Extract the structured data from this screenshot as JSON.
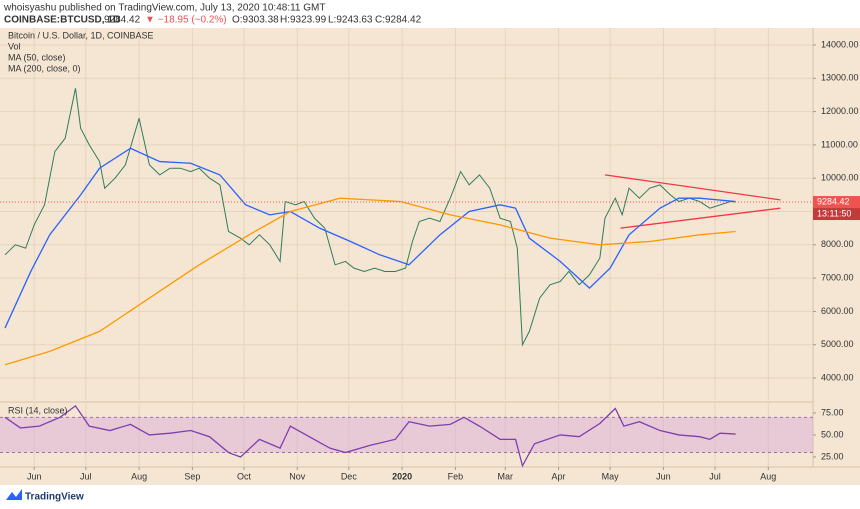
{
  "header": {
    "published": "whoisyashu published on TradingView.com, July 13, 2020 10:48:11 GMT",
    "symbol": "COINBASE:BTCUSD, 1D",
    "last": "9284.42",
    "change": "▼ −18.95 (−0.2%)",
    "open": "O:9303.38",
    "high": "H:9323.99",
    "low": "L:9243.63",
    "close": "C:9284.42"
  },
  "footer": {
    "brand": "TradingView"
  },
  "chart_data": [
    {
      "type": "line",
      "title": "Bitcoin / U.S. Dollar, 1D, COINBASE",
      "volume_label": "Vol",
      "xlim": [
        0,
        470
      ],
      "xticks": [
        {
          "value": 17,
          "label": "Jun"
        },
        {
          "value": 47,
          "label": "Jul"
        },
        {
          "value": 78,
          "label": "Aug"
        },
        {
          "value": 109,
          "label": "Sep"
        },
        {
          "value": 139,
          "label": "Oct"
        },
        {
          "value": 170,
          "label": "Nov"
        },
        {
          "value": 200,
          "label": "Dec"
        },
        {
          "value": 231,
          "label": "2020"
        },
        {
          "value": 262,
          "label": "Feb"
        },
        {
          "value": 291,
          "label": "Mar"
        },
        {
          "value": 322,
          "label": "Apr"
        },
        {
          "value": 352,
          "label": "May"
        },
        {
          "value": 383,
          "label": "Jun"
        },
        {
          "value": 413,
          "label": "Jul"
        },
        {
          "value": 444,
          "label": "Aug"
        }
      ],
      "ylim": [
        3340,
        14450
      ],
      "yticks": [
        {
          "value": 4000,
          "label": "4000.00"
        },
        {
          "value": 5000,
          "label": "5000.00"
        },
        {
          "value": 6000,
          "label": "6000.00"
        },
        {
          "value": 7000,
          "label": "7000.00"
        },
        {
          "value": 8000,
          "label": "8000.00"
        },
        {
          "value": 9000,
          "label": "9000.00"
        },
        {
          "value": 10000,
          "label": "10000.00"
        },
        {
          "value": 11000,
          "label": "11000.00"
        },
        {
          "value": 12000,
          "label": "12000.00"
        },
        {
          "value": 13000,
          "label": "13000.00"
        },
        {
          "value": 14000,
          "label": "14000.00"
        }
      ],
      "grid": true,
      "last_price": 9284.42,
      "countdown": "13:11:50",
      "last_price_color": "#ef5350",
      "series": [
        {
          "color": "#2e7d5b",
          "x": [
            0,
            6,
            12,
            17,
            23,
            29,
            35,
            41,
            44,
            49,
            55,
            58,
            64,
            70,
            78,
            84,
            90,
            96,
            102,
            108,
            113,
            119,
            125,
            130,
            137,
            142,
            148,
            154,
            160,
            163,
            169,
            174,
            180,
            186,
            192,
            198,
            203,
            209,
            215,
            221,
            227,
            233,
            237,
            241,
            247,
            253,
            259,
            265,
            270,
            276,
            282,
            288,
            294,
            298,
            301,
            305,
            311,
            317,
            323,
            328,
            334,
            340,
            346,
            349,
            355,
            359,
            363,
            369,
            375,
            381,
            387,
            392,
            398,
            404,
            410,
            416,
            422,
            425
          ],
          "values": [
            7700,
            8000,
            7900,
            8600,
            9200,
            10800,
            11200,
            12700,
            11500,
            11000,
            10500,
            9700,
            10000,
            10400,
            11800,
            10400,
            10100,
            10300,
            10300,
            10200,
            10300,
            10000,
            9800,
            8400,
            8200,
            8000,
            8300,
            8000,
            7500,
            9300,
            9200,
            9300,
            8800,
            8500,
            7400,
            7500,
            7300,
            7200,
            7300,
            7200,
            7200,
            7300,
            8100,
            8700,
            8800,
            8700,
            9400,
            10200,
            9800,
            10100,
            9700,
            8800,
            8700,
            7900,
            5000,
            5400,
            6400,
            6800,
            6900,
            7200,
            6800,
            7100,
            7600,
            8800,
            9400,
            8900,
            9700,
            9400,
            9700,
            9800,
            9500,
            9300,
            9400,
            9300,
            9100,
            9200,
            9300,
            9284.42
          ]
        },
        {
          "name": "MA (50, close)",
          "color": "#2962ff",
          "x": [
            0,
            15,
            26,
            44,
            55,
            73,
            90,
            108,
            125,
            140,
            154,
            166,
            183,
            201,
            218,
            235,
            253,
            270,
            288,
            297,
            305,
            323,
            340,
            352,
            363,
            381,
            392,
            404,
            425
          ],
          "values": [
            5500,
            7200,
            8300,
            9500,
            10300,
            10900,
            10500,
            10450,
            10100,
            9200,
            8900,
            9000,
            8500,
            8100,
            7700,
            7400,
            8300,
            9000,
            9200,
            9100,
            8200,
            7500,
            6700,
            7300,
            8300,
            9100,
            9400,
            9400,
            9300
          ]
        },
        {
          "name": "MA (200, close, 0)",
          "color": "#ff9800",
          "x": [
            0,
            26,
            55,
            84,
            113,
            142,
            166,
            195,
            230,
            259,
            288,
            317,
            346,
            375,
            404,
            425
          ],
          "values": [
            4400,
            4800,
            5400,
            6400,
            7400,
            8300,
            9000,
            9400,
            9300,
            8900,
            8600,
            8200,
            8000,
            8100,
            8300,
            8400
          ]
        }
      ],
      "trendline_color": "#f23645",
      "trendlines": [
        {
          "x": [
            349,
            451
          ],
          "values": [
            10100,
            9350
          ]
        },
        {
          "x": [
            358,
            451
          ],
          "values": [
            8500,
            9100
          ]
        }
      ]
    },
    {
      "type": "line",
      "title": "RSI (14, close)",
      "xlim": [
        0,
        470
      ],
      "ylim": [
        13.6,
        84
      ],
      "yticks": [
        {
          "value": 25,
          "label": "25.00"
        },
        {
          "value": 50,
          "label": "50.00"
        },
        {
          "value": 75,
          "label": "75.00"
        }
      ],
      "band": [
        30,
        70
      ],
      "band_color": "#d9a6d9",
      "series": [
        {
          "color": "#7e3fb0",
          "x": [
            0,
            9,
            20,
            32,
            41,
            49,
            61,
            73,
            84,
            96,
            108,
            119,
            130,
            137,
            148,
            160,
            166,
            177,
            189,
            198,
            212,
            227,
            235,
            247,
            259,
            267,
            276,
            288,
            297,
            301,
            308,
            323,
            334,
            346,
            355,
            360,
            369,
            381,
            392,
            404,
            410,
            416,
            425
          ],
          "values": [
            70,
            58,
            60,
            70,
            83,
            60,
            55,
            62,
            50,
            52,
            55,
            48,
            30,
            25,
            45,
            35,
            60,
            48,
            35,
            30,
            38,
            45,
            65,
            60,
            62,
            70,
            60,
            45,
            45,
            15,
            40,
            50,
            48,
            63,
            80,
            60,
            65,
            55,
            50,
            48,
            45,
            52,
            51
          ]
        }
      ]
    }
  ]
}
